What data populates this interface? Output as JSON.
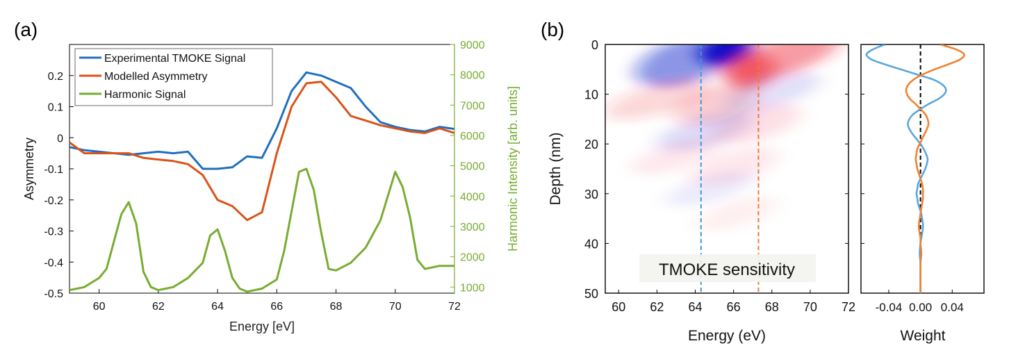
{
  "colors": {
    "experimental": "#1f6fbf",
    "modelled": "#d95319",
    "harmonic": "#77ac30",
    "right_axis": "#77ac30",
    "dash_blue": "#3a9ad9",
    "dash_orange": "#f07a36",
    "weight_blue": "#5aa6dc",
    "weight_orange": "#f28030",
    "heat_neg": "#0a10c8",
    "heat_pos": "#ee2233"
  },
  "panel_a": {
    "label": "(a)"
  },
  "panel_b": {
    "label": "(b)",
    "annotation": "TMOKE sensitivity"
  },
  "chart_data": [
    {
      "type": "line",
      "panel": "(a)",
      "xlabel": "Energy [eV]",
      "ylabel": "Asymmetry",
      "y2label": "Harmonic Intensity [arb. units]",
      "xlim": [
        59,
        72
      ],
      "ylim": [
        -0.5,
        0.3
      ],
      "y2lim": [
        800,
        9000
      ],
      "x_ticks": [
        60,
        62,
        64,
        66,
        68,
        70,
        72
      ],
      "y_ticks": [
        0.2,
        0.1,
        0,
        -0.1,
        -0.2,
        -0.3,
        -0.4,
        -0.5
      ],
      "y_tick_labels": [
        "0.2",
        "0.1",
        "0",
        "-0.1",
        "-0.2",
        "-0.3",
        "-0.4",
        "-0.5"
      ],
      "y2_ticks": [
        1000,
        2000,
        3000,
        4000,
        5000,
        6000,
        7000,
        8000,
        9000
      ],
      "legend_position": "top-left",
      "series": [
        {
          "name": "Experimental TMOKE Signal",
          "axis": "left",
          "x": [
            59,
            59.5,
            60,
            60.5,
            61,
            61.5,
            62,
            62.5,
            63,
            63.5,
            64,
            64.5,
            65,
            65.5,
            66,
            66.5,
            67,
            67.5,
            68,
            68.5,
            69,
            69.5,
            70,
            70.5,
            71,
            71.5,
            72
          ],
          "y": [
            -0.03,
            -0.04,
            -0.045,
            -0.05,
            -0.055,
            -0.05,
            -0.045,
            -0.05,
            -0.045,
            -0.1,
            -0.1,
            -0.095,
            -0.06,
            -0.065,
            0.03,
            0.15,
            0.21,
            0.2,
            0.18,
            0.16,
            0.1,
            0.05,
            0.035,
            0.025,
            0.02,
            0.035,
            0.028
          ]
        },
        {
          "name": "Modelled Asymmetry",
          "axis": "left",
          "x": [
            59,
            59.5,
            60,
            60.5,
            61,
            61.5,
            62,
            62.5,
            63,
            63.5,
            64,
            64.5,
            65,
            65.5,
            66,
            66.5,
            67,
            67.5,
            68,
            68.5,
            69,
            69.5,
            70,
            70.5,
            71,
            71.5,
            72
          ],
          "y": [
            -0.015,
            -0.05,
            -0.05,
            -0.05,
            -0.05,
            -0.065,
            -0.07,
            -0.075,
            -0.085,
            -0.12,
            -0.2,
            -0.22,
            -0.265,
            -0.24,
            -0.05,
            0.1,
            0.175,
            0.18,
            0.13,
            0.07,
            0.055,
            0.04,
            0.03,
            0.02,
            0.015,
            0.03,
            0.015
          ]
        },
        {
          "name": "Harmonic Signal",
          "axis": "right",
          "x": [
            59,
            59.5,
            60,
            60.25,
            60.5,
            60.75,
            61,
            61.25,
            61.5,
            61.75,
            62,
            62.5,
            63,
            63.5,
            63.75,
            64,
            64.25,
            64.5,
            64.75,
            65,
            65.5,
            66,
            66.25,
            66.5,
            66.75,
            67,
            67.25,
            67.5,
            67.75,
            68,
            68.5,
            69,
            69.5,
            69.75,
            70,
            70.25,
            70.5,
            70.75,
            71,
            71.5,
            72
          ],
          "y": [
            900,
            1000,
            1300,
            1600,
            2500,
            3400,
            3800,
            3100,
            1500,
            1000,
            900,
            1000,
            1300,
            1800,
            2700,
            2900,
            2200,
            1300,
            950,
            850,
            950,
            1250,
            2200,
            3500,
            4800,
            4900,
            4200,
            2800,
            1600,
            1550,
            1800,
            2300,
            3200,
            4000,
            4800,
            4300,
            3300,
            1900,
            1600,
            1700,
            1700
          ]
        }
      ]
    },
    {
      "type": "heatmap",
      "panel": "(b)",
      "xlabel": "Energy (eV)",
      "ylabel": "Depth (nm)",
      "xlim": [
        59.3,
        72
      ],
      "ylim": [
        0,
        50
      ],
      "x_ticks": [
        60,
        62,
        64,
        66,
        68,
        70,
        72
      ],
      "y_ticks": [
        0,
        10,
        20,
        30,
        40,
        50
      ],
      "vlines": [
        64.3,
        67.3
      ],
      "color_scale": "negative blue, zero white, positive red"
    },
    {
      "type": "line",
      "panel": "(b)",
      "xlabel": "Weight",
      "xlim": [
        -0.075,
        0.08
      ],
      "ylim": [
        0,
        50
      ],
      "x_ticks": [
        -0.04,
        0,
        0.04
      ],
      "x_tick_labels": [
        "-0.04",
        "0.00",
        "0.04"
      ],
      "y_ticks": [
        0,
        10,
        20,
        30,
        40,
        50
      ],
      "zero_line": 0,
      "series": [
        {
          "axis": "blue",
          "depth": [
            0,
            1,
            2,
            3,
            4,
            5,
            6,
            7,
            8,
            9,
            10,
            11,
            12,
            13,
            14,
            15,
            16,
            17,
            18,
            19,
            20,
            21,
            22,
            23,
            24,
            25,
            26,
            27,
            28,
            29,
            30,
            31,
            32,
            33,
            34,
            35,
            36,
            37,
            38,
            39,
            40,
            42,
            44,
            46,
            48,
            50
          ],
          "weight": [
            -0.045,
            -0.06,
            -0.068,
            -0.062,
            -0.045,
            -0.025,
            -0.005,
            0.015,
            0.027,
            0.032,
            0.03,
            0.022,
            0.01,
            0,
            -0.009,
            -0.014,
            -0.016,
            -0.014,
            -0.01,
            -0.005,
            0,
            0.004,
            0.007,
            0.009,
            0.008,
            0.006,
            0.003,
            0,
            -0.003,
            -0.004,
            -0.005,
            -0.004,
            -0.003,
            -0.001,
            0.001,
            0.002,
            0.003,
            0.003,
            0.002,
            0.001,
            0,
            -0.001,
            0,
            0,
            0,
            0
          ]
        },
        {
          "axis": "orange",
          "depth": [
            0,
            1,
            2,
            3,
            4,
            5,
            6,
            7,
            8,
            9,
            10,
            11,
            12,
            13,
            14,
            15,
            16,
            17,
            18,
            19,
            20,
            21,
            22,
            23,
            24,
            25,
            26,
            27,
            28,
            29,
            30,
            31,
            32,
            33,
            34,
            35,
            36,
            37,
            38,
            39,
            40,
            42,
            44,
            46,
            48,
            50
          ],
          "weight": [
            0.025,
            0.045,
            0.055,
            0.05,
            0.035,
            0.018,
            0.003,
            -0.008,
            -0.015,
            -0.018,
            -0.017,
            -0.013,
            -0.006,
            0,
            0.006,
            0.009,
            0.01,
            0.008,
            0.005,
            0.002,
            -0.001,
            -0.004,
            -0.005,
            -0.006,
            -0.005,
            -0.004,
            -0.002,
            0,
            0.002,
            0.003,
            0.003,
            0.003,
            0.002,
            0.001,
            0,
            -0.001,
            -0.002,
            -0.002,
            -0.001,
            0,
            0,
            0.001,
            0,
            0,
            0,
            0
          ]
        }
      ]
    }
  ]
}
